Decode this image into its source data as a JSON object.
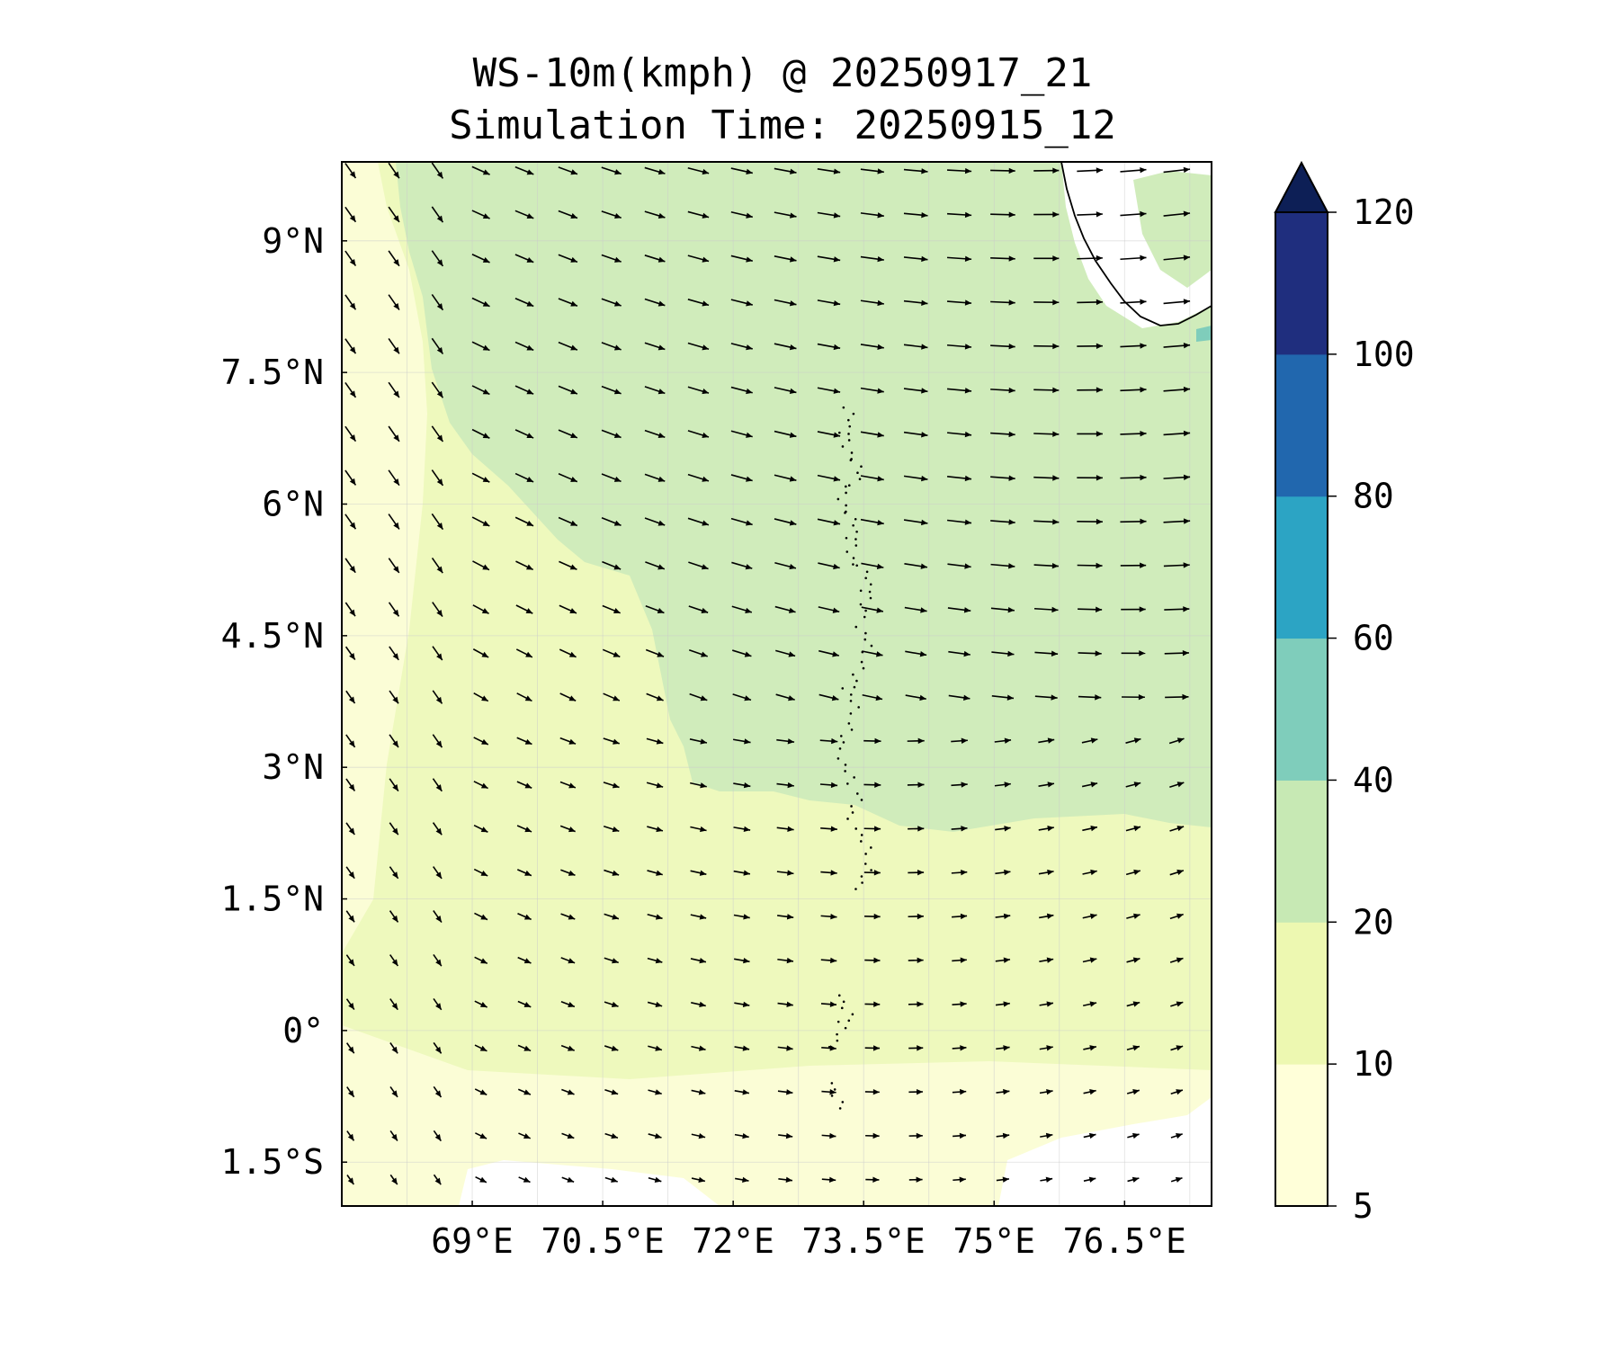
{
  "title": {
    "line1": "WS-10m(kmph) @ 20250917_21",
    "line2": "Simulation Time: 20250915_12"
  },
  "map": {
    "lon_range": [
      67.5,
      77.5
    ],
    "lat_range": [
      -2.0,
      9.9
    ],
    "lon_ticks": [
      {
        "value": 69.0,
        "label": "69°E"
      },
      {
        "value": 70.5,
        "label": "70.5°E"
      },
      {
        "value": 72.0,
        "label": "72°E"
      },
      {
        "value": 73.5,
        "label": "73.5°E"
      },
      {
        "value": 75.0,
        "label": "75°E"
      },
      {
        "value": 76.5,
        "label": "76.5°E"
      }
    ],
    "lat_ticks": [
      {
        "value": 9.0,
        "label": "9°N"
      },
      {
        "value": 7.5,
        "label": "7.5°N"
      },
      {
        "value": 6.0,
        "label": "6°N"
      },
      {
        "value": 4.5,
        "label": "4.5°N"
      },
      {
        "value": 3.0,
        "label": "3°N"
      },
      {
        "value": 1.5,
        "label": "1.5°N"
      },
      {
        "value": 0.0,
        "label": "0°"
      },
      {
        "value": -1.5,
        "label": "1.5°S"
      }
    ],
    "gridlines": true,
    "wind_vectors": true,
    "coastline": true
  },
  "colorbar": {
    "levels": [
      5,
      10,
      20,
      40,
      60,
      80,
      100,
      120
    ],
    "labels": [
      "5",
      "10",
      "20",
      "40",
      "60",
      "80",
      "100",
      "120"
    ],
    "colors": [
      "#ffffd9",
      "#edf8b1",
      "#c7e9b4",
      "#7fcdbb",
      "#2ca4c4",
      "#2167ae",
      "#1f2e7e"
    ],
    "extend_color": "#0d1f56",
    "extend": "max"
  },
  "colors": {
    "calm": "#ffffff",
    "band_5_10": "#fbfdd6",
    "band_10_20": "#eef9bd",
    "band_20_40": "#d0ecbb",
    "band_40_60": "#7fcdbb"
  }
}
